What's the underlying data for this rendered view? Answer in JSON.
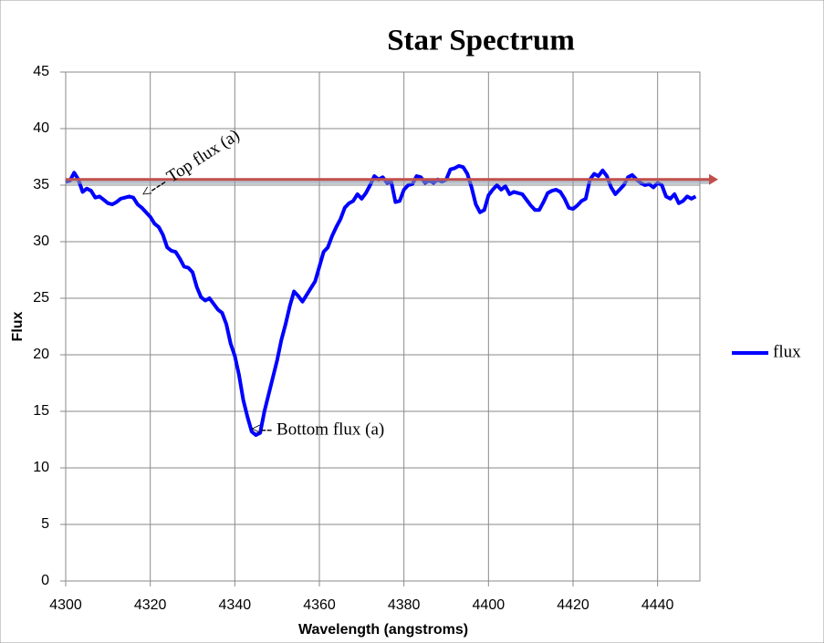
{
  "chart_data": {
    "type": "line",
    "title": "Star Spectrum",
    "x_label": "Wavelength (angstroms)",
    "y_label": "Flux",
    "x": [
      4300,
      4301,
      4302,
      4303,
      4304,
      4305,
      4306,
      4307,
      4308,
      4309,
      4310,
      4311,
      4312,
      4313,
      4314,
      4315,
      4316,
      4317,
      4318,
      4319,
      4320,
      4321,
      4322,
      4323,
      4324,
      4325,
      4326,
      4327,
      4328,
      4329,
      4330,
      4331,
      4332,
      4333,
      4334,
      4335,
      4336,
      4337,
      4338,
      4339,
      4340,
      4341,
      4342,
      4343,
      4344,
      4345,
      4346,
      4347,
      4348,
      4349,
      4350,
      4351,
      4352,
      4353,
      4354,
      4355,
      4356,
      4357,
      4358,
      4359,
      4360,
      4361,
      4362,
      4363,
      4364,
      4365,
      4366,
      4367,
      4368,
      4369,
      4370,
      4371,
      4372,
      4373,
      4374,
      4375,
      4376,
      4377,
      4378,
      4379,
      4380,
      4381,
      4382,
      4383,
      4384,
      4385,
      4386,
      4387,
      4388,
      4389,
      4390,
      4391,
      4392,
      4393,
      4394,
      4395,
      4396,
      4397,
      4398,
      4399,
      4400,
      4401,
      4402,
      4403,
      4404,
      4405,
      4406,
      4407,
      4408,
      4409,
      4410,
      4411,
      4412,
      4413,
      4414,
      4415,
      4416,
      4417,
      4418,
      4419,
      4420,
      4421,
      4422,
      4423,
      4424,
      4425,
      4426,
      4427,
      4428,
      4429,
      4430,
      4431,
      4432,
      4433,
      4434,
      4435,
      4436,
      4437,
      4438,
      4439,
      4440,
      4441,
      4442,
      4443,
      4444,
      4445,
      4446,
      4447,
      4448,
      4449
    ],
    "series": [
      {
        "name": "flux",
        "color": "#0000ff",
        "values": [
          35.3,
          35.4,
          36.1,
          35.5,
          34.4,
          34.7,
          34.5,
          33.9,
          34.0,
          33.7,
          33.4,
          33.3,
          33.5,
          33.8,
          33.9,
          34.0,
          33.9,
          33.3,
          33.0,
          32.6,
          32.2,
          31.6,
          31.3,
          30.6,
          29.5,
          29.2,
          29.1,
          28.5,
          27.8,
          27.7,
          27.3,
          26.0,
          25.1,
          24.8,
          25.0,
          24.5,
          24.0,
          23.7,
          22.7,
          21.0,
          19.9,
          18.2,
          16.0,
          14.5,
          13.2,
          12.9,
          13.1,
          15.0,
          16.5,
          18.0,
          19.5,
          21.3,
          22.7,
          24.3,
          25.6,
          25.2,
          24.7,
          25.3,
          25.9,
          26.5,
          27.8,
          29.1,
          29.5,
          30.5,
          31.3,
          32.0,
          33.0,
          33.4,
          33.6,
          34.2,
          33.8,
          34.3,
          35.0,
          35.8,
          35.5,
          35.7,
          35.2,
          35.3,
          33.5,
          33.6,
          34.6,
          35.0,
          35.1,
          35.8,
          35.7,
          35.2,
          35.4,
          35.2,
          35.5,
          35.3,
          35.5,
          36.4,
          36.5,
          36.7,
          36.6,
          36.0,
          34.8,
          33.3,
          32.6,
          32.8,
          34.1,
          34.6,
          35.0,
          34.6,
          34.9,
          34.2,
          34.4,
          34.3,
          34.2,
          33.7,
          33.2,
          32.8,
          32.8,
          33.5,
          34.3,
          34.5,
          34.6,
          34.4,
          33.8,
          33.0,
          32.9,
          33.2,
          33.6,
          33.8,
          35.5,
          36.0,
          35.8,
          36.3,
          35.8,
          34.8,
          34.2,
          34.6,
          35.0,
          35.7,
          35.9,
          35.5,
          35.2,
          35.0,
          35.1,
          34.8,
          35.2,
          35.0,
          34.0,
          33.8,
          34.2,
          33.4,
          33.6,
          34.0,
          33.8,
          34.0
        ]
      }
    ],
    "xlim": [
      4300,
      4450
    ],
    "xticks": [
      4300,
      4320,
      4340,
      4360,
      4380,
      4400,
      4420,
      4440
    ],
    "ylim": [
      0,
      45
    ],
    "yticks": [
      0,
      5,
      10,
      15,
      20,
      25,
      30,
      35,
      40,
      45
    ],
    "grid": true,
    "legend": "right",
    "reference_line": {
      "value": 35.5,
      "color": "#c0504d"
    },
    "annotations": [
      {
        "text": "<--- Top flux (a)",
        "x": 4318.3,
        "y": 34.0
      },
      {
        "text": "<-- Bottom flux (a)",
        "x": 4343.8,
        "y": 13.3
      }
    ]
  }
}
